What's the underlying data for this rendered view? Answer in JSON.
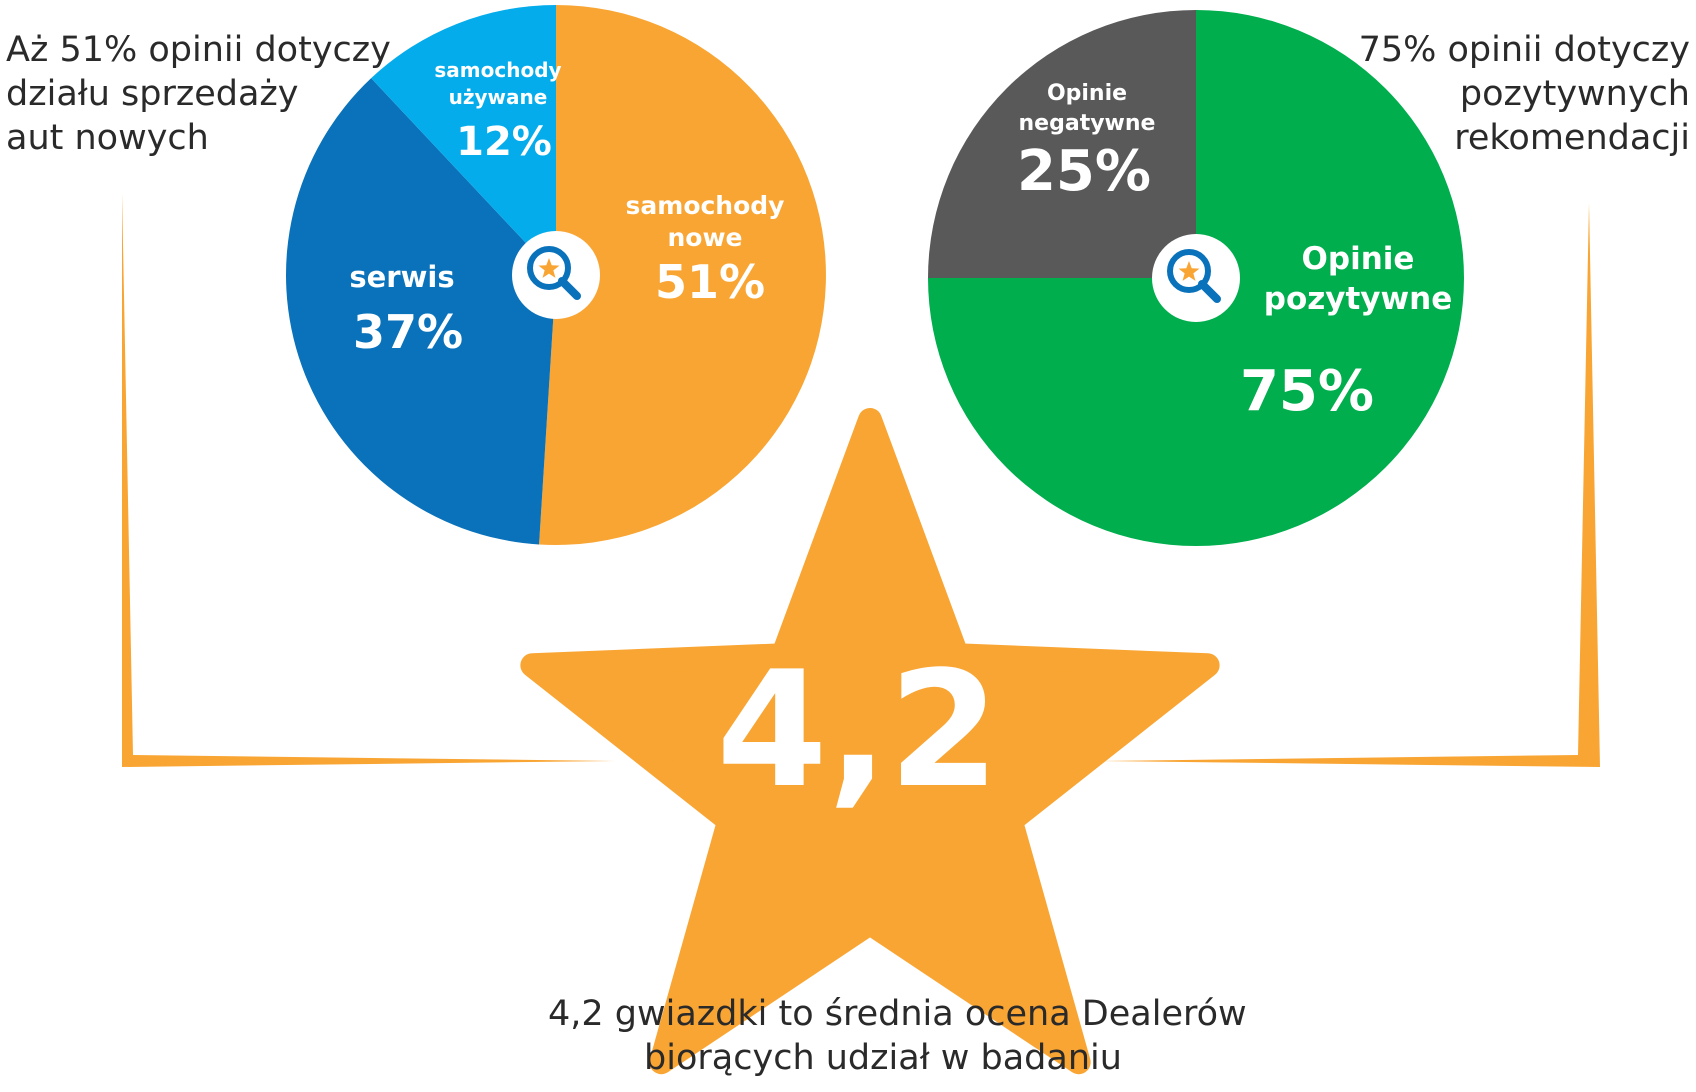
{
  "colors": {
    "orange": "#F9A533",
    "blue_dark": "#0A72BA",
    "blue_light": "#05ACEB",
    "green": "#00AE4D",
    "gray": "#595959",
    "connector": "#F9A533"
  },
  "captions": {
    "left": [
      "Aż 51% opinii dotyczy",
      "działu sprzedaży",
      "aut nowych"
    ],
    "right": [
      "75% opinii dotyczy",
      "pozytywnych",
      "rekomendacji"
    ],
    "bottom": [
      "4,2 gwiazdki to średnia ocena Dealerów",
      "biorących udział w badaniu"
    ]
  },
  "star": {
    "value_label": "4,2",
    "icon": "star-shape"
  },
  "center_icon": "magnifier-star-icon",
  "chart_data": [
    {
      "type": "pie",
      "slices": [
        {
          "name_lines": [
            "samochody",
            "nowe"
          ],
          "value": 51,
          "label": "51%",
          "color": "#F9A533"
        },
        {
          "name_lines": [
            "serwis"
          ],
          "value": 37,
          "label": "37%",
          "color": "#0A72BA"
        },
        {
          "name_lines": [
            "samochody",
            "używane"
          ],
          "value": 12,
          "label": "12%",
          "color": "#05ACEB"
        }
      ]
    },
    {
      "type": "pie",
      "slices": [
        {
          "name_lines": [
            "Opinie",
            "pozytywne"
          ],
          "value": 75,
          "label": "75%",
          "color": "#00AE4D"
        },
        {
          "name_lines": [
            "Opinie",
            "negatywne"
          ],
          "value": 25,
          "label": "25%",
          "color": "#595959"
        }
      ]
    }
  ]
}
